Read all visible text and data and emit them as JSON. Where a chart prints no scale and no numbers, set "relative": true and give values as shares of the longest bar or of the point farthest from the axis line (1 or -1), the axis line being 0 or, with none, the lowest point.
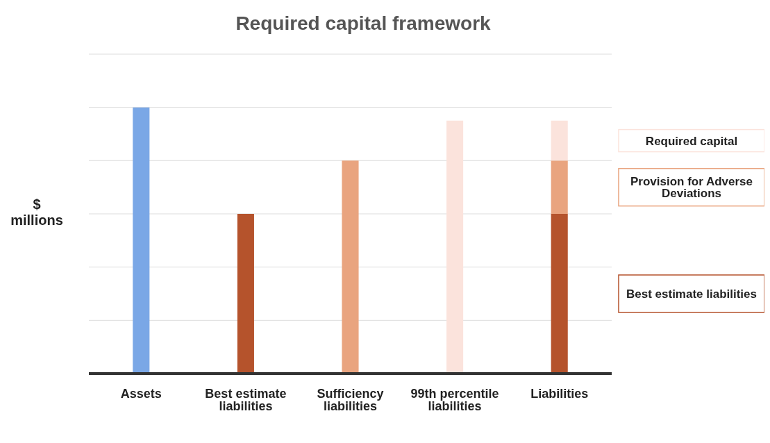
{
  "chart_data": {
    "type": "bar",
    "title": "Required capital framework",
    "ylabel": "$ millions",
    "relative": true,
    "stacked": true,
    "grid": "y",
    "categories": [
      "Assets",
      "Best estimate liabilities",
      "Sufficiency liabilities",
      "99th percentile liabilities",
      "Liabilities"
    ],
    "series": [
      {
        "name": "Best estimate liabilities",
        "colors": [
          "#7aa7e6",
          "#b5532c",
          "#e9a47f",
          "#fbe3dc",
          "#b5532c"
        ],
        "values": [
          1,
          0.6,
          0.8,
          0.95,
          0.6
        ]
      },
      {
        "name": "Provision for Adverse Deviations",
        "color": "#e9a47f",
        "values": [
          null,
          null,
          null,
          null,
          0.2
        ]
      },
      {
        "name": "Required capital",
        "color": "#fbe3dc",
        "values": [
          null,
          null,
          null,
          null,
          0.15
        ]
      }
    ]
  }
}
